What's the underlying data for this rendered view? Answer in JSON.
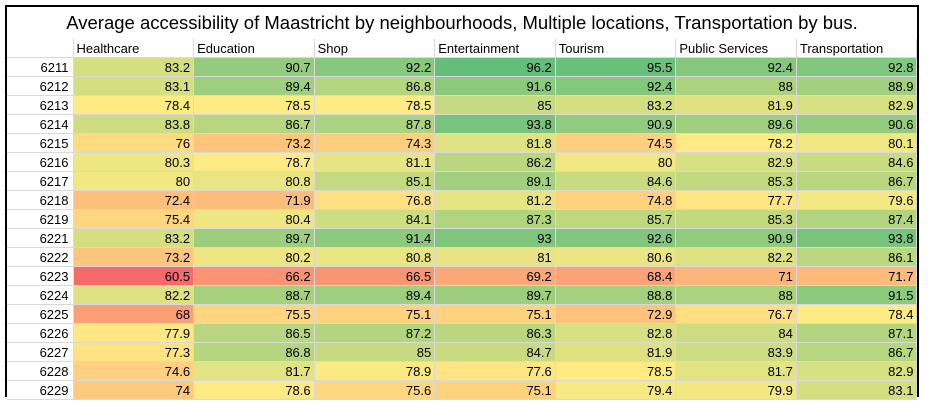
{
  "chart_data": {
    "type": "heatmap",
    "title": "Average accessibility of Maastricht by neighbourhoods, Multiple locations, Transportation by bus.",
    "columns": [
      "Healthcare",
      "Education",
      "Shop",
      "Entertainment",
      "Tourism",
      "Public Services",
      "Transportation"
    ],
    "rows": [
      "6211",
      "6212",
      "6213",
      "6214",
      "6215",
      "6216",
      "6217",
      "6218",
      "6219",
      "6221",
      "6222",
      "6223",
      "6224",
      "6225",
      "6226",
      "6227",
      "6228",
      "6229"
    ],
    "values": [
      [
        "83.2",
        "90.7",
        "92.2",
        "96.2",
        "95.5",
        "92.4",
        "92.8"
      ],
      [
        "83.1",
        "89.4",
        "86.8",
        "91.6",
        "92.4",
        "88",
        "88.9"
      ],
      [
        "78.4",
        "78.5",
        "78.5",
        "85",
        "83.2",
        "81.9",
        "82.9"
      ],
      [
        "83.8",
        "86.7",
        "87.8",
        "93.8",
        "90.9",
        "89.6",
        "90.6"
      ],
      [
        "76",
        "73.2",
        "74.3",
        "81.8",
        "74.5",
        "78.2",
        "80.1"
      ],
      [
        "80.3",
        "78.7",
        "81.1",
        "86.2",
        "80",
        "82.9",
        "84.6"
      ],
      [
        "80",
        "80.8",
        "85.1",
        "89.1",
        "84.6",
        "85.3",
        "86.7"
      ],
      [
        "72.4",
        "71.9",
        "76.8",
        "81.2",
        "74.8",
        "77.7",
        "79.6"
      ],
      [
        "75.4",
        "80.4",
        "84.1",
        "87.3",
        "85.7",
        "85.3",
        "87.4"
      ],
      [
        "83.2",
        "89.7",
        "91.4",
        "93",
        "92.6",
        "90.9",
        "93.8"
      ],
      [
        "73.2",
        "80.2",
        "80.8",
        "81",
        "80.6",
        "82.2",
        "86.1"
      ],
      [
        "60.5",
        "66.2",
        "66.5",
        "69.2",
        "68.4",
        "71",
        "71.7"
      ],
      [
        "82.2",
        "88.7",
        "89.4",
        "89.7",
        "88.8",
        "88",
        "91.5"
      ],
      [
        "68",
        "75.5",
        "75.1",
        "75.1",
        "72.9",
        "76.7",
        "78.4"
      ],
      [
        "77.9",
        "86.5",
        "87.2",
        "86.3",
        "82.8",
        "84",
        "87.1"
      ],
      [
        "77.3",
        "86.8",
        "85",
        "84.7",
        "81.9",
        "83.9",
        "86.7"
      ],
      [
        "74.6",
        "81.7",
        "78.9",
        "77.6",
        "78.5",
        "81.7",
        "82.9"
      ],
      [
        "74",
        "78.6",
        "75.6",
        "75.1",
        "79.4",
        "79.9",
        "83.1"
      ]
    ],
    "color_scale": {
      "low": "#f8696b",
      "mid": "#ffeb84",
      "high": "#63be7b"
    }
  }
}
